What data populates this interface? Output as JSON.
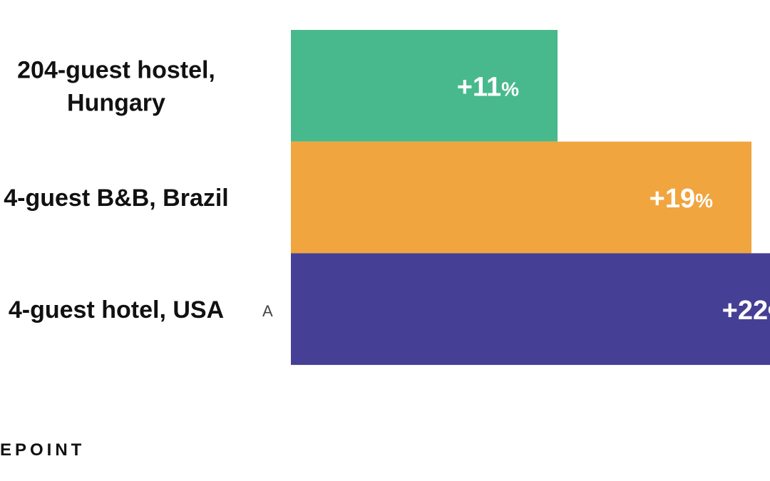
{
  "chart_data": {
    "type": "bar",
    "orientation": "horizontal",
    "title": "",
    "xlabel": "",
    "ylabel": "",
    "categories": [
      "204-guest hostel,\nHungary",
      "4-guest B&B, Brazil",
      "4-guest hotel, USA"
    ],
    "values": [
      11,
      19,
      22
    ],
    "value_labels": [
      "+11",
      "+19",
      "+22"
    ],
    "unit": "%",
    "colors": [
      "#48b98c",
      "#f0a53f",
      "#463f96"
    ],
    "xlim": [
      0,
      22
    ],
    "grid": false
  },
  "stray_mark": "A",
  "branding": {
    "text": "EPOINT"
  }
}
